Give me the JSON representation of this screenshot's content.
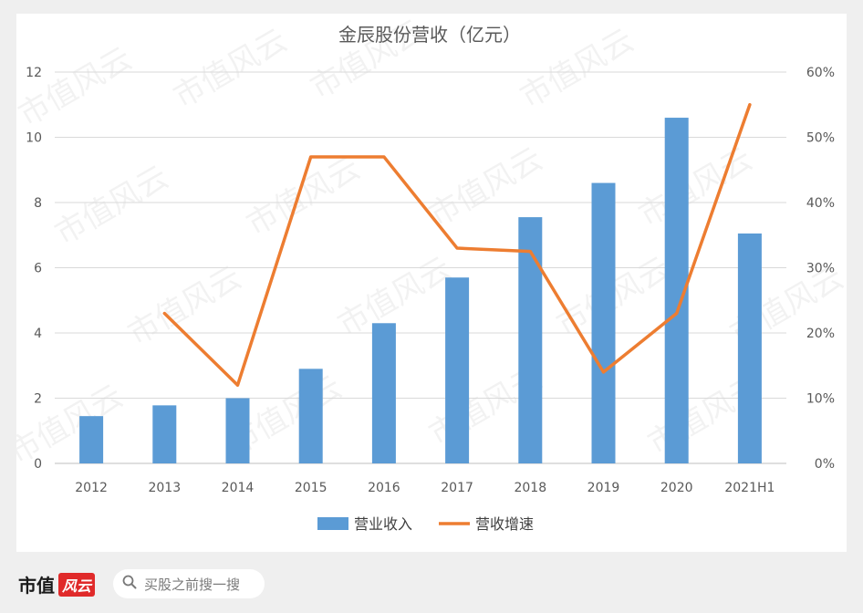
{
  "chart_data": {
    "type": "bar",
    "title": "金辰股份营收（亿元）",
    "categories": [
      "2012",
      "2013",
      "2014",
      "2015",
      "2016",
      "2017",
      "2018",
      "2019",
      "2020",
      "2021H1"
    ],
    "series": [
      {
        "name": "营业收入",
        "type": "bar",
        "axis": "left",
        "values": [
          1.45,
          1.78,
          2.0,
          2.9,
          4.3,
          5.7,
          7.55,
          8.6,
          10.6,
          7.05
        ]
      },
      {
        "name": "营收增速",
        "type": "line",
        "axis": "right",
        "values": [
          null,
          0.23,
          0.12,
          0.47,
          0.47,
          0.33,
          0.325,
          0.14,
          0.23,
          0.55
        ]
      }
    ],
    "y_left": {
      "ticks": [
        "0",
        "2",
        "4",
        "6",
        "8",
        "10",
        "12"
      ],
      "lim": [
        0,
        12
      ]
    },
    "y_right": {
      "ticks": [
        "0%",
        "10%",
        "20%",
        "30%",
        "40%",
        "50%",
        "60%"
      ],
      "lim": [
        0,
        0.6
      ]
    },
    "grid": true,
    "legend_position": "bottom",
    "colors": {
      "bar": "#5b9bd5",
      "line": "#ed7d31"
    }
  },
  "watermark": "市值风云",
  "footer": {
    "brand_text": "市值",
    "brand_badge": "风云",
    "search_placeholder": "买股之前搜一搜"
  }
}
